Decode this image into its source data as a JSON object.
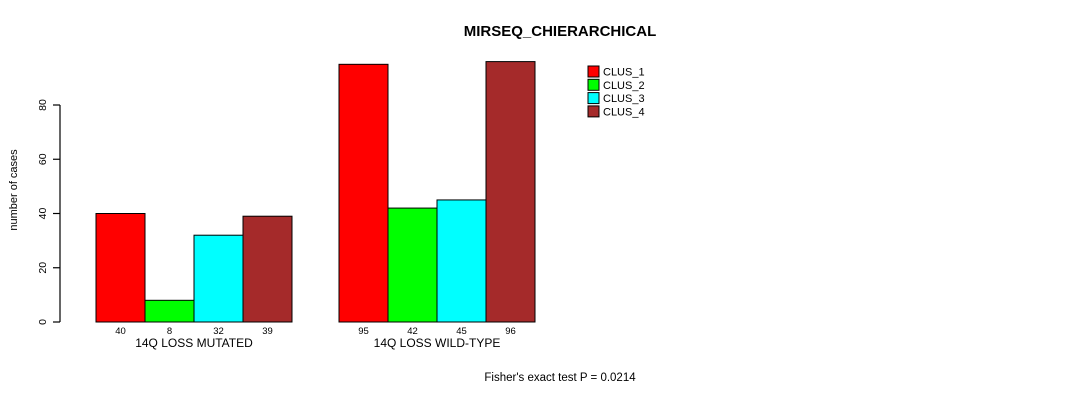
{
  "chart_data": {
    "type": "bar",
    "title": "MIRSEQ_CHIERARCHICAL",
    "ylabel": "number of cases",
    "xlabel": "",
    "footnote": "Fisher's exact test P = 0.0214",
    "categories": [
      "14Q LOSS MUTATED",
      "14Q LOSS WILD-TYPE"
    ],
    "series": [
      {
        "name": "CLUS_1",
        "color": "#FF0000",
        "values": [
          40,
          95
        ]
      },
      {
        "name": "CLUS_2",
        "color": "#00FF00",
        "values": [
          8,
          42
        ]
      },
      {
        "name": "CLUS_3",
        "color": "#00FFFF",
        "values": [
          32,
          45
        ]
      },
      {
        "name": "CLUS_4",
        "color": "#A52A2A",
        "values": [
          39,
          96
        ]
      }
    ],
    "yticks": [
      0,
      20,
      40,
      60,
      80
    ],
    "ylim": [
      0,
      97
    ],
    "grid": false,
    "bar_border_color": "#000000",
    "bar_value_labels_group1": [
      40,
      8,
      32,
      39
    ],
    "bar_value_labels_group2": [
      95,
      42,
      45,
      96
    ],
    "legend": {
      "position": "top-right-inside",
      "entries": [
        "CLUS_1",
        "CLUS_2",
        "CLUS_3",
        "CLUS_4"
      ],
      "colors": [
        "#FF0000",
        "#00FF00",
        "#00FFFF",
        "#A52A2A"
      ]
    }
  }
}
